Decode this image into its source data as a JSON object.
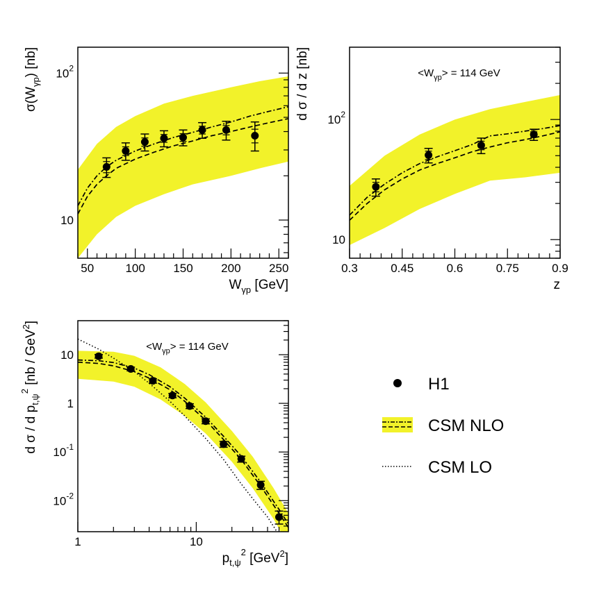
{
  "colors": {
    "band": "#f2f22a",
    "marker": "#000000",
    "curve": "#000000"
  },
  "legend": {
    "placement": "bottom-right",
    "entries": [
      {
        "label": "H1",
        "style": "marker"
      },
      {
        "label": "CSM NLO",
        "style": "band-dashed"
      },
      {
        "label": "CSM LO",
        "style": "dotted"
      }
    ]
  },
  "chart_data": [
    {
      "type": "line",
      "panel": "top-left",
      "title": "",
      "xlabel_main": "W",
      "xlabel_sub": "γp",
      "xlabel_units": "[GeV]",
      "ylabel_pre": "σ(W",
      "ylabel_sub": "γp",
      "ylabel_post": ")  [nb]",
      "annotation": "",
      "xscale": "linear",
      "yscale": "log",
      "xlim": [
        40,
        260
      ],
      "ylim": [
        5.5,
        150
      ],
      "xticks": [
        50,
        100,
        150,
        200,
        250
      ],
      "xticklabels": [
        "50",
        "100",
        "150",
        "200",
        "250"
      ],
      "yticklabels": [
        {
          "value": 10,
          "base": "10",
          "exp": ""
        },
        {
          "value": 100,
          "base": "10",
          "exp": "2"
        }
      ],
      "data": {
        "name": "H1",
        "x": [
          70,
          90,
          110,
          130,
          150,
          170,
          195,
          225
        ],
        "y": [
          23,
          29.5,
          34,
          36,
          36.5,
          41,
          41,
          37.5
        ],
        "yerr_lo": [
          3.5,
          4,
          4.5,
          4.5,
          4.5,
          5,
          6,
          8
        ],
        "yerr_hi": [
          3.5,
          4,
          4.5,
          4.5,
          4.5,
          5,
          6,
          9
        ],
        "yerr_inner_lo": [
          2,
          2,
          2.2,
          2.2,
          2.2,
          2.5,
          3,
          4
        ],
        "yerr_inner_hi": [
          2,
          2,
          2.2,
          2.2,
          2.2,
          2.5,
          3,
          4
        ]
      },
      "band": {
        "name": "CSM NLO",
        "x": [
          40,
          60,
          80,
          100,
          130,
          160,
          200,
          230,
          260
        ],
        "y_low": [
          5.5,
          8,
          10.5,
          12.5,
          15,
          17.5,
          20,
          22.5,
          25
        ],
        "y_high": [
          22,
          33,
          43,
          51,
          62,
          70,
          80,
          88,
          95
        ]
      },
      "curves": [
        {
          "name": "CSM NLO",
          "style": "dashed",
          "x": [
            40,
            50,
            60,
            70,
            80,
            100,
            120,
            140,
            160,
            180,
            200,
            220,
            240,
            260
          ],
          "y": [
            11,
            14.5,
            17.5,
            20,
            22.5,
            26,
            29,
            32,
            34.5,
            37.5,
            40,
            43,
            46,
            49
          ]
        },
        {
          "name": "CSM NLO",
          "style": "dashdot",
          "x": [
            40,
            50,
            60,
            70,
            80,
            100,
            120,
            140,
            160,
            180,
            200,
            220,
            240,
            260
          ],
          "y": [
            12.5,
            16.5,
            20,
            23,
            25.5,
            29.5,
            33,
            36.5,
            39.5,
            43,
            46.5,
            51,
            55,
            59
          ]
        }
      ]
    },
    {
      "type": "line",
      "panel": "top-right",
      "title": "",
      "xlabel_main": "z",
      "xlabel_sub": "",
      "xlabel_units": "",
      "ylabel_pre": "d σ / d z [nb]",
      "ylabel_sub": "",
      "ylabel_post": "",
      "annotation": "<W",
      "annotation_sub": "γp",
      "annotation_post": "> = 114 GeV",
      "xscale": "linear",
      "yscale": "log",
      "xlim": [
        0.3,
        0.9
      ],
      "ylim": [
        7,
        400
      ],
      "xticks": [
        0.3,
        0.45,
        0.6,
        0.75,
        0.9
      ],
      "xticklabels": [
        "0.3",
        "0.45",
        "0.6",
        "0.75",
        "0.9"
      ],
      "yticklabels": [
        {
          "value": 10,
          "base": "10",
          "exp": ""
        },
        {
          "value": 100,
          "base": "10",
          "exp": "2"
        }
      ],
      "data": {
        "name": "H1",
        "x": [
          0.375,
          0.525,
          0.675,
          0.825
        ],
        "y": [
          27.5,
          50.5,
          61,
          75
        ],
        "yerr_lo": [
          4.5,
          7,
          9,
          8
        ],
        "yerr_hi": [
          4.5,
          7,
          9,
          8
        ],
        "yerr_inner_lo": [
          2.5,
          4,
          5,
          4
        ],
        "yerr_inner_hi": [
          2.5,
          4,
          5,
          4
        ]
      },
      "band": {
        "name": "CSM NLO",
        "x": [
          0.3,
          0.4,
          0.5,
          0.6,
          0.7,
          0.8,
          0.9
        ],
        "y_low": [
          9,
          12.5,
          18,
          24,
          31,
          33,
          36
        ],
        "y_high": [
          28,
          50,
          75,
          100,
          122,
          140,
          160
        ]
      },
      "curves": [
        {
          "name": "CSM NLO",
          "style": "dashed",
          "x": [
            0.3,
            0.35,
            0.4,
            0.45,
            0.5,
            0.55,
            0.6,
            0.65,
            0.7,
            0.75,
            0.8,
            0.85,
            0.9
          ],
          "y": [
            14.5,
            20,
            26,
            32,
            38,
            43,
            48,
            54,
            59,
            64,
            68,
            73,
            79
          ]
        },
        {
          "name": "CSM NLO",
          "style": "dashdot",
          "x": [
            0.3,
            0.35,
            0.4,
            0.45,
            0.5,
            0.55,
            0.6,
            0.65,
            0.7,
            0.75,
            0.8,
            0.85,
            0.9
          ],
          "y": [
            16,
            22.5,
            29,
            36,
            43,
            49,
            55,
            62,
            73,
            76,
            80,
            84,
            89
          ]
        }
      ]
    },
    {
      "type": "line",
      "panel": "bottom-left",
      "title": "",
      "xlabel_main": "p",
      "xlabel_sub": "t,ψ",
      "xlabel_sup": "2",
      "xlabel_units": "[GeV",
      "xlabel_units_sup": "2",
      "xlabel_units_post": "]",
      "ylabel_pre": "d σ / d p",
      "ylabel_sub": "t,ψ",
      "ylabel_sup": "2",
      "ylabel_post": " [nb / GeV",
      "ylabel_post_sup": "2",
      "ylabel_end": "]",
      "annotation": "<W",
      "annotation_sub": "γp",
      "annotation_post": "> = 114 GeV",
      "xscale": "log",
      "yscale": "log",
      "xlim": [
        1,
        60
      ],
      "ylim": [
        0.0023,
        50
      ],
      "xticklabels": [
        {
          "value": 1,
          "base": "1",
          "exp": ""
        },
        {
          "value": 10,
          "base": "10",
          "exp": ""
        }
      ],
      "yticklabels": [
        {
          "value": 0.01,
          "base": "10",
          "exp": "-2"
        },
        {
          "value": 0.1,
          "base": "10",
          "exp": "-1"
        },
        {
          "value": 1,
          "base": "1",
          "exp": ""
        },
        {
          "value": 10,
          "base": "10",
          "exp": ""
        }
      ],
      "data": {
        "name": "H1",
        "x": [
          1.5,
          2.8,
          4.3,
          6.3,
          8.8,
          12,
          17,
          24,
          35,
          50
        ],
        "y": [
          9.3,
          5.1,
          2.9,
          1.45,
          0.88,
          0.43,
          0.145,
          0.072,
          0.021,
          0.0046
        ],
        "yerr_lo": [
          0.8,
          0.45,
          0.3,
          0.15,
          0.1,
          0.05,
          0.02,
          0.01,
          0.004,
          0.0013
        ],
        "yerr_hi": [
          0.8,
          0.45,
          0.3,
          0.15,
          0.1,
          0.05,
          0.02,
          0.01,
          0.004,
          0.0015
        ]
      },
      "band": {
        "name": "CSM NLO",
        "x": [
          1,
          2,
          3,
          5,
          8,
          12,
          20,
          30,
          45,
          60
        ],
        "y_low": [
          3.2,
          2.8,
          2.2,
          1.2,
          0.55,
          0.24,
          0.063,
          0.018,
          0.0042,
          0.0012
        ],
        "y_high": [
          12,
          11.5,
          9.5,
          5.5,
          2.5,
          1.05,
          0.27,
          0.08,
          0.018,
          0.0055
        ]
      },
      "curves": [
        {
          "name": "CSM NLO",
          "style": "dashed",
          "x": [
            1,
            1.5,
            2,
            3,
            4,
            6,
            8,
            12,
            17,
            24,
            35,
            50,
            60
          ],
          "y": [
            7,
            6.6,
            5.9,
            4.5,
            3.3,
            1.9,
            1.1,
            0.45,
            0.18,
            0.07,
            0.02,
            0.0055,
            0.0028
          ]
        },
        {
          "name": "CSM NLO",
          "style": "dashdot",
          "x": [
            1,
            1.5,
            2,
            3,
            4,
            6,
            8,
            12,
            17,
            24,
            35,
            50,
            60
          ],
          "y": [
            7.8,
            7.5,
            6.9,
            5.3,
            3.9,
            2.2,
            1.28,
            0.52,
            0.21,
            0.082,
            0.024,
            0.0066,
            0.0033
          ]
        },
        {
          "name": "CSM LO",
          "style": "dotted",
          "x": [
            1,
            1.5,
            2,
            3,
            4,
            6,
            8,
            12,
            17,
            24,
            30,
            40,
            48
          ],
          "y": [
            21,
            13,
            8.5,
            4.5,
            2.6,
            1.1,
            0.55,
            0.19,
            0.07,
            0.022,
            0.011,
            0.0046,
            0.0023
          ]
        }
      ]
    }
  ]
}
